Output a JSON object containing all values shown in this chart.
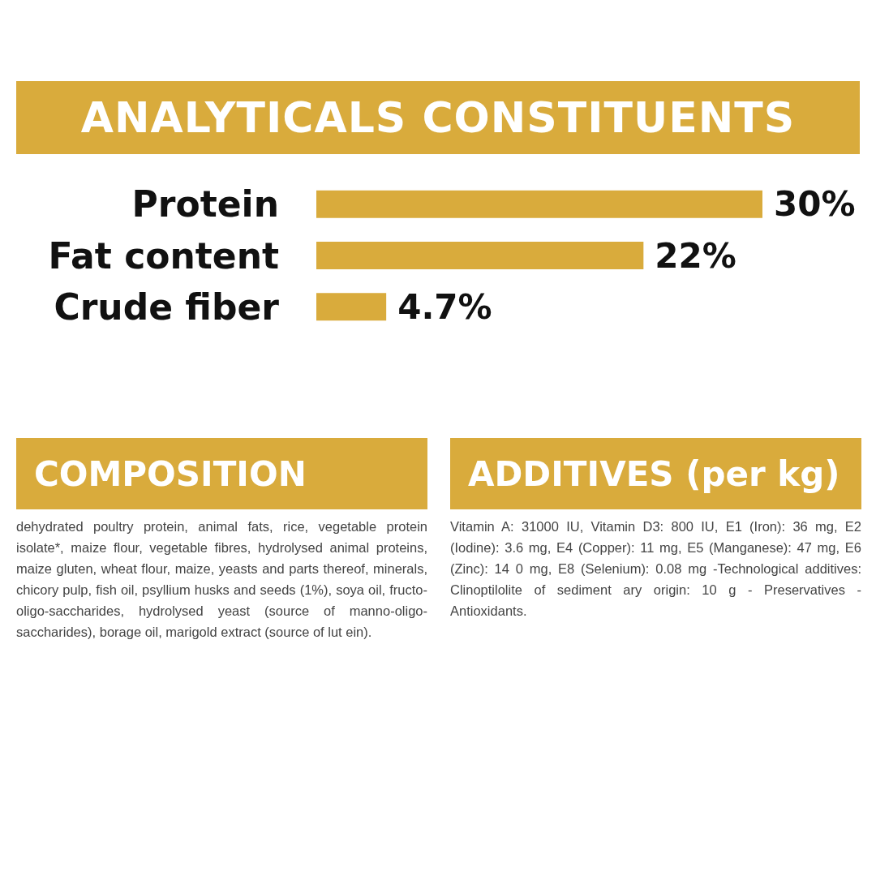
{
  "chart_data": {
    "type": "bar",
    "orientation": "horizontal",
    "title": "ANALYTICALS CONSTITUENTS",
    "categories": [
      "Protein",
      "Fat content",
      "Crude fiber"
    ],
    "values": [
      30,
      22,
      4.7
    ],
    "value_labels": [
      "30%",
      "22%",
      "4.7%"
    ],
    "color": "#d9ab3c",
    "tick_labels": false,
    "annotations": [
      "COMPOSITION",
      "dehydrated poultry protein, animal fats, rice, vegetable protein isolate*, maize flour, vegetable fibres, hydrolysed animal proteins, maize gluten, wheat flour, maize, yeasts and parts thereof, minerals, chicory pulp, fish oil, psyllium husks and seeds (1%), soya oil, fructo-oligo-saccharides, hydrolysed yeast (source of manno-oligo-saccharides), borage oil, marigold extract (source of lut ein).",
      "ADDITIVES (per kg)",
      "Vitamin A: 31000 IU, Vitamin D3: 800 IU, E1 (Iron): 36 mg, E2 (Iodine): 3.6 mg, E4 (Copper): 11 mg, E5 (Manganese): 47 mg, E6 (Zinc): 14 0 mg, E8 (Selenium): 0.08 mg -Technological additives: Clinoptilolite of sediment ary origin: 10 g - Preservatives - Antioxidants."
    ]
  }
}
